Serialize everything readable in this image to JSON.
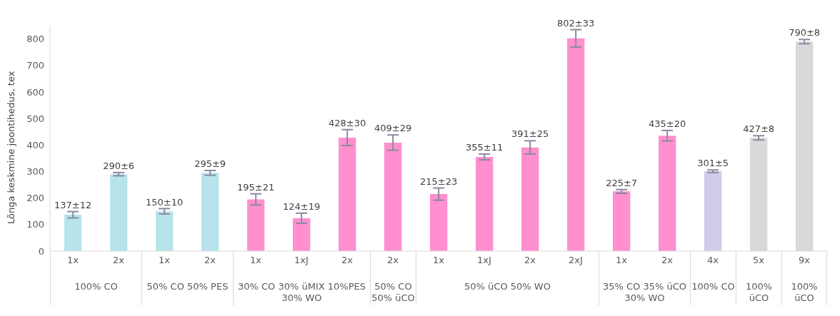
{
  "chart_data": {
    "type": "bar",
    "ylabel": "Lõnga keskmine joontihedus, tex",
    "categories": [
      "1x",
      "2x",
      "1x",
      "2x",
      "1x",
      "1xJ",
      "2x",
      "2x",
      "1x",
      "1xJ",
      "2x",
      "2xJ",
      "1x",
      "2x",
      "4x",
      "5x",
      "9x"
    ],
    "values": [
      137,
      290,
      150,
      295,
      195,
      124,
      428,
      409,
      215,
      355,
      391,
      802,
      225,
      435,
      301,
      427,
      790
    ],
    "errors": [
      12,
      6,
      10,
      9,
      21,
      19,
      30,
      29,
      23,
      11,
      25,
      33,
      7,
      20,
      5,
      8,
      8
    ],
    "value_labels": [
      "137±12",
      "290±6",
      "150±10",
      "295±9",
      "195±21",
      "124±19",
      "428±30",
      "409±29",
      "215±23",
      "355±11",
      "391±25",
      "802±33",
      "225±7",
      "435±20",
      "301±5",
      "427±8",
      "790±8"
    ],
    "colors": [
      "#b7e4ea",
      "#b7e4ea",
      "#b7e4ea",
      "#b7e4ea",
      "#ff8fce",
      "#ff8fce",
      "#ff8fce",
      "#ff8fce",
      "#ff8fce",
      "#ff8fce",
      "#ff8fce",
      "#ff8fce",
      "#ff8fce",
      "#ff8fce",
      "#cfcbe8",
      "#d9d9d9",
      "#d9d9d9"
    ],
    "annotations": [
      "100% CO",
      "50% CO 50% PES",
      "30% CO 30% üMIX 10%PES 30% WO",
      "50% CO 50% üCO",
      "50% üCO 50% WO",
      "35% CO 35% üCO 30% WO",
      "100% CO",
      "100% üCO",
      "100% üCO"
    ],
    "ylim": [
      0,
      850
    ],
    "yticks": [
      0,
      100,
      200,
      300,
      400,
      500,
      600,
      700,
      800
    ]
  }
}
